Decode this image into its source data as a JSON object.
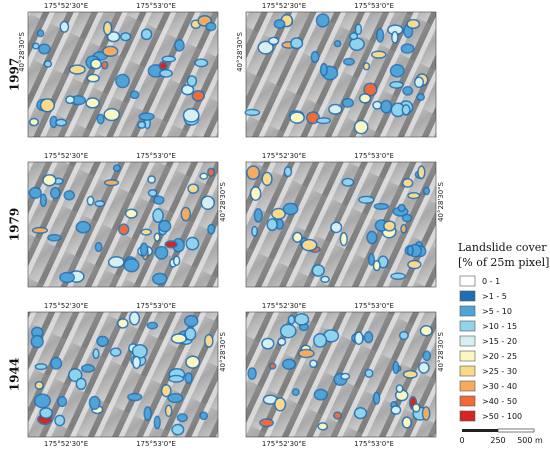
{
  "rows": [
    {
      "year": "1997"
    },
    {
      "year": "1979"
    },
    {
      "year": "1944"
    }
  ],
  "lon_labels": [
    "175°52'30\"E",
    "175°53'0\"E"
  ],
  "lat_label": "40°28'30\"S",
  "legend": {
    "title": "Landslide cover",
    "subtitle": "[% of 25m pixel]",
    "classes": [
      {
        "label": "0 - 1",
        "color": "#ffffff"
      },
      {
        "label": ">1 - 5",
        "color": "#1f6fb5"
      },
      {
        "label": ">5 - 10",
        "color": "#4fa3d6"
      },
      {
        "label": ">10 - 15",
        "color": "#8fd3ec"
      },
      {
        "label": ">15 - 20",
        "color": "#d6f0f2"
      },
      {
        "label": ">20 - 25",
        "color": "#fbf7c0"
      },
      {
        "label": ">25 - 30",
        "color": "#fbd98a"
      },
      {
        "label": ">30 - 40",
        "color": "#f8aa5c"
      },
      {
        "label": ">40 - 50",
        "color": "#f06a3a"
      },
      {
        "label": ">50 - 100",
        "color": "#d7261e"
      }
    ]
  },
  "scale_bar": {
    "labels": [
      "0",
      "250",
      "500 m"
    ]
  }
}
